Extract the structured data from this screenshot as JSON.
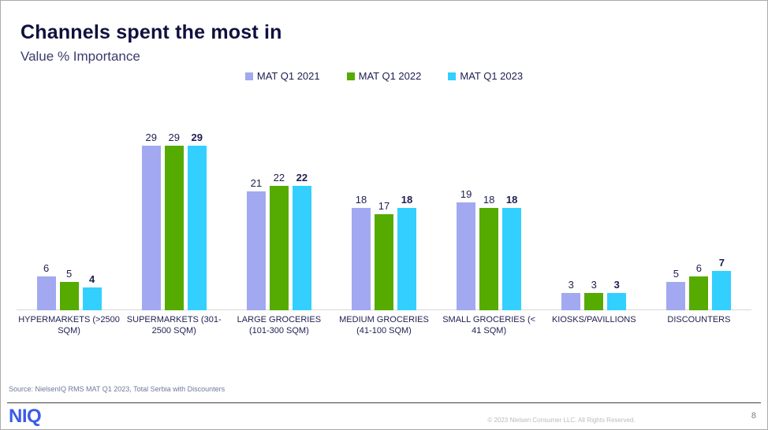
{
  "header": {
    "title": "Channels spent the most in",
    "subtitle": "Value % Importance"
  },
  "chart_data": {
    "type": "bar",
    "categories": [
      "HYPERMARKETS (>2500 SQM)",
      "SUPERMARKETS (301-2500 SQM)",
      "LARGE GROCERIES (101-300 SQM)",
      "MEDIUM GROCERIES (41-100 SQM)",
      "SMALL GROCERIES (< 41 SQM)",
      "KIOSKS/PAVILLIONS",
      "DISCOUNTERS"
    ],
    "series": [
      {
        "name": "MAT Q1 2021",
        "color": "#A2A9F0",
        "values": [
          6,
          29,
          21,
          18,
          19,
          3,
          5
        ],
        "emphasis": false
      },
      {
        "name": "MAT Q1 2022",
        "color": "#55AB00",
        "values": [
          5,
          29,
          22,
          17,
          18,
          3,
          6
        ],
        "emphasis": false
      },
      {
        "name": "MAT Q1 2023",
        "color": "#33CFFF",
        "values": [
          4,
          29,
          22,
          18,
          18,
          3,
          7
        ],
        "emphasis": true
      }
    ],
    "title": "Channels spent the most in",
    "subtitle": "Value % Importance",
    "xlabel": "",
    "ylabel": "",
    "ylim": [
      0,
      30
    ],
    "grid": false,
    "legend_position": "top",
    "value_labels": true
  },
  "source": {
    "text": "Source: NielsenIQ RMS MAT Q1 2023, Total Serbia with Discounters"
  },
  "footer": {
    "logo": "NIQ",
    "copyright": "© 2023 Nielsen Consumer LLC. All Rights Reserved.",
    "page_number": "8"
  }
}
